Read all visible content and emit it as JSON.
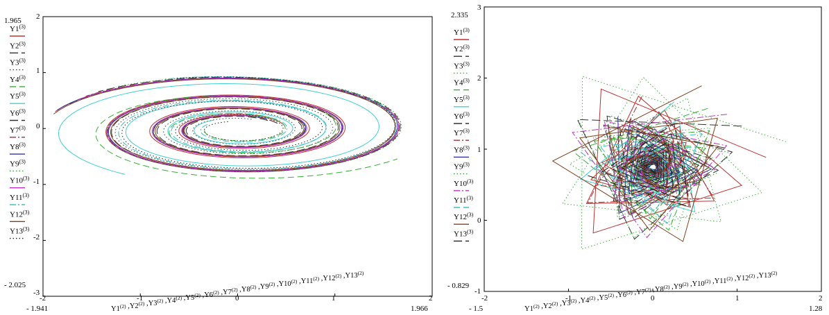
{
  "chart_data": [
    {
      "type": "line",
      "title": "",
      "xlabel": "Y1(2) ,Y2(2) ,Y3(2) ,Y4(2) ,Y5(2) ,Y6(2) ,Y7(2) ,Y8(2) ,Y9(2) ,Y10(2) ,Y11(2) ,Y12(2) ,Y13(2)",
      "xlim": [
        -2,
        2
      ],
      "ylim": [
        -3,
        2
      ],
      "x_ticks": [
        "-2",
        "-1",
        "0",
        "1",
        "2"
      ],
      "y_ticks": [
        "2",
        "1",
        "0",
        "-1",
        "-2",
        "-3"
      ],
      "x_range_labels": {
        "min": "- 1.941",
        "max": "1.966"
      },
      "y_range_labels": {
        "max": "1.965",
        "min": "- 2.025"
      },
      "legend_placement": "left",
      "series": [
        {
          "name": "Y1(3)",
          "color": "#c03030",
          "dash": "solid",
          "a0": 1.98,
          "b0": 1.0,
          "k": 0.0107,
          "t0": 0.3,
          "turns": 3.4,
          "cx": 0.0,
          "cy": -0.02
        },
        {
          "name": "Y2(3)",
          "color": "#303030",
          "dash": "long-dash",
          "a0": 1.97,
          "b0": 0.99,
          "k": 0.0116,
          "t0": 0.5,
          "turns": 3.3,
          "cx": 0.0,
          "cy": -0.02
        },
        {
          "name": "Y3(3)",
          "color": "#404040",
          "dash": "dotted",
          "a0": 1.96,
          "b0": 0.98,
          "k": 0.0133,
          "t0": 1.2,
          "turns": 3.2,
          "cx": 0.0,
          "cy": -0.02
        },
        {
          "name": "Y4(3)",
          "color": "#30b030",
          "dash": "dash",
          "a0": 1.95,
          "b0": 0.97,
          "k": 0.0193,
          "t0": 3.2,
          "turns": 2.4,
          "cx": 0.0,
          "cy": -0.02
        },
        {
          "name": "Y5(3)",
          "color": "#40d0d0",
          "dash": "solid",
          "a0": 1.97,
          "b0": 0.99,
          "k": 0.0125,
          "t0": 2.2,
          "turns": 3.3,
          "cx": 0.0,
          "cy": -0.02
        },
        {
          "name": "Y6(3)",
          "color": "#303030",
          "dash": "long-dash",
          "a0": 1.96,
          "b0": 0.99,
          "k": 0.0119,
          "t0": 0.8,
          "turns": 3.3,
          "cx": 0.0,
          "cy": -0.02
        },
        {
          "name": "Y7(3)",
          "color": "#a03030",
          "dash": "dash-dot",
          "a0": 1.97,
          "b0": 0.98,
          "k": 0.0116,
          "t0": 0.6,
          "turns": 3.3,
          "cx": 0.0,
          "cy": -0.02
        },
        {
          "name": "Y8(3)",
          "color": "#3030a0",
          "dash": "solid",
          "a0": 1.98,
          "b0": 1.0,
          "k": 0.0113,
          "t0": 0.9,
          "turns": 3.3,
          "cx": 0.0,
          "cy": -0.02
        },
        {
          "name": "Y9(3)",
          "color": "#30a030",
          "dash": "dotted",
          "a0": 1.97,
          "b0": 0.99,
          "k": 0.0118,
          "t0": 1.0,
          "turns": 3.2,
          "cx": 0.0,
          "cy": -0.02
        },
        {
          "name": "Y10(3)",
          "color": "#c030c0",
          "dash": "solid",
          "a0": 1.96,
          "b0": 0.98,
          "k": 0.0112,
          "t0": 1.3,
          "turns": 3.2,
          "cx": 0.0,
          "cy": -0.02
        },
        {
          "name": "Y11(3)",
          "color": "#40c0c0",
          "dash": "dash-dot",
          "a0": 1.96,
          "b0": 0.98,
          "k": 0.0155,
          "t0": 2.6,
          "turns": 2.9,
          "cx": 0.0,
          "cy": -0.02
        },
        {
          "name": "Y12(3)",
          "color": "#804020",
          "dash": "solid",
          "a0": 1.97,
          "b0": 0.99,
          "k": 0.0115,
          "t0": 1.6,
          "turns": 3.2,
          "cx": 0.0,
          "cy": -0.02
        },
        {
          "name": "Y13(3)",
          "color": "#202020",
          "dash": "dotted",
          "a0": 1.95,
          "b0": 0.97,
          "k": 0.0165,
          "t0": 1.9,
          "turns": 3.0,
          "cx": 0.0,
          "cy": -0.02
        }
      ]
    },
    {
      "type": "line",
      "title": "",
      "xlabel": "Y1(2) ,Y2(2) ,Y3(2) ,Y4(2) ,Y5(2) ,Y6(2) ,Y7(2) ,Y8(2) ,Y9(2) ,Y10(2) ,Y11(2) ,Y12(2) ,Y13(2)",
      "xlim": [
        -2,
        2
      ],
      "ylim": [
        -1,
        3
      ],
      "x_ticks": [
        "-2",
        "-1",
        "0",
        "1",
        "2"
      ],
      "y_ticks": [
        "3",
        "2",
        "1",
        "0",
        "-1"
      ],
      "x_range_labels": {
        "min": "- 1.5",
        "max": "1.28"
      },
      "y_range_labels": {
        "max": "2.335",
        "min": "- 0.829"
      },
      "legend_placement": "left",
      "center": [
        0.0,
        0.75
      ],
      "series": [
        {
          "name": "Y1(3)",
          "color": "#c03030",
          "dash": "solid",
          "r0": 1.35,
          "decay": 0.93,
          "rot0": 0.1,
          "drot": 0.41,
          "n": 40
        },
        {
          "name": "Y2(3)",
          "color": "#303030",
          "dash": "long-dash",
          "r0": 1.2,
          "decay": 0.93,
          "rot0": 0.5,
          "drot": 0.43,
          "n": 38
        },
        {
          "name": "Y3(3)",
          "color": "#40b040",
          "dash": "dotted",
          "r0": 1.62,
          "decay": 0.94,
          "rot0": 0.22,
          "drot": 0.36,
          "n": 44
        },
        {
          "name": "Y4(3)",
          "color": "#30b030",
          "dash": "dash",
          "r0": 1.05,
          "decay": 0.93,
          "rot0": 0.9,
          "drot": 0.44,
          "n": 36
        },
        {
          "name": "Y5(3)",
          "color": "#40d0d0",
          "dash": "solid",
          "r0": 0.95,
          "decay": 0.92,
          "rot0": 1.3,
          "drot": 0.47,
          "n": 34
        },
        {
          "name": "Y6(3)",
          "color": "#303030",
          "dash": "long-dash",
          "r0": 0.9,
          "decay": 0.92,
          "rot0": 0.3,
          "drot": 0.48,
          "n": 34
        },
        {
          "name": "Y7(3)",
          "color": "#a03030",
          "dash": "dash-dot",
          "r0": 1.0,
          "decay": 0.92,
          "rot0": 1.7,
          "drot": 0.45,
          "n": 34
        },
        {
          "name": "Y8(3)",
          "color": "#3030a0",
          "dash": "solid",
          "r0": 0.82,
          "decay": 0.92,
          "rot0": 2.1,
          "drot": 0.5,
          "n": 32
        },
        {
          "name": "Y9(3)",
          "color": "#30a030",
          "dash": "dotted",
          "r0": 1.1,
          "decay": 0.93,
          "rot0": 2.5,
          "drot": 0.42,
          "n": 36
        },
        {
          "name": "Y10(3)",
          "color": "#c030c0",
          "dash": "dash-dot",
          "r0": 1.15,
          "decay": 0.93,
          "rot0": 0.7,
          "drot": 0.4,
          "n": 38
        },
        {
          "name": "Y11(3)",
          "color": "#40c0c0",
          "dash": "dash",
          "r0": 0.88,
          "decay": 0.92,
          "rot0": 2.9,
          "drot": 0.46,
          "n": 33
        },
        {
          "name": "Y12(3)",
          "color": "#804020",
          "dash": "solid",
          "r0": 1.28,
          "decay": 0.93,
          "rot0": 1.1,
          "drot": 0.4,
          "n": 40
        },
        {
          "name": "Y13(3)",
          "color": "#202020",
          "dash": "long-dash",
          "r0": 0.78,
          "decay": 0.92,
          "rot0": 3.3,
          "drot": 0.51,
          "n": 31
        }
      ]
    }
  ]
}
